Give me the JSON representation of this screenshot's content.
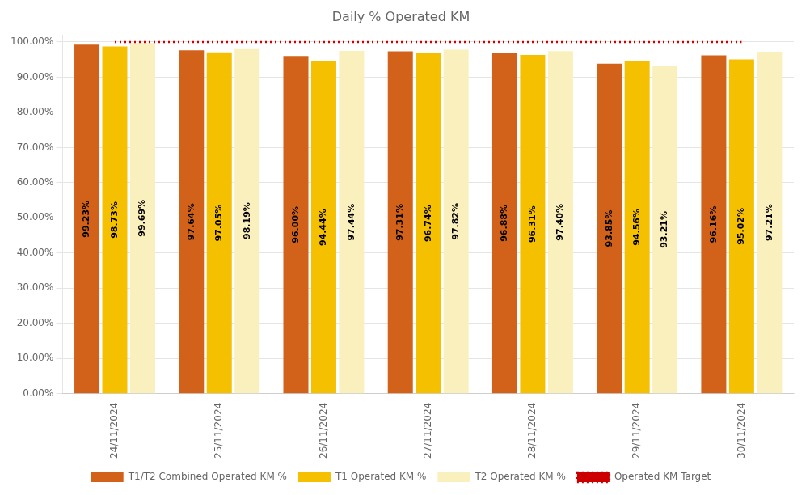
{
  "chart_data": {
    "type": "bar",
    "title": "Daily % Operated KM",
    "categories": [
      "24/11/2024",
      "25/11/2024",
      "26/11/2024",
      "27/11/2024",
      "28/11/2024",
      "29/11/2024",
      "30/11/2024"
    ],
    "series": [
      {
        "name": "T1/T2 Combined Operated KM %",
        "color": "#D2621A",
        "values": [
          99.23,
          97.64,
          96.0,
          97.31,
          96.88,
          93.85,
          96.16
        ],
        "value_labels": [
          "99.23%",
          "97.64%",
          "96.00%",
          "97.31%",
          "96.88%",
          "93.85%",
          "96.16%"
        ]
      },
      {
        "name": "T1 Operated KM %",
        "color": "#F5C000",
        "values": [
          98.73,
          97.05,
          94.44,
          96.74,
          96.31,
          94.56,
          95.02
        ],
        "value_labels": [
          "98.73%",
          "97.05%",
          "94.44%",
          "96.74%",
          "96.31%",
          "94.56%",
          "95.02%"
        ]
      },
      {
        "name": "T2 Operated KM %",
        "color": "#FAF0BE",
        "values": [
          99.69,
          98.19,
          97.44,
          97.82,
          97.4,
          93.21,
          97.21
        ],
        "value_labels": [
          "99.69%",
          "98.19%",
          "97.44%",
          "97.82%",
          "97.40%",
          "93.21%",
          "97.21%"
        ]
      },
      {
        "name": "Operated KM Target",
        "type": "line",
        "color": "#CC0000",
        "line_style": "dotted",
        "values": [
          100.0,
          100.0,
          100.0,
          100.0,
          100.0,
          100.0,
          100.0
        ]
      }
    ],
    "ylim": [
      0,
      102
    ],
    "yticks": [
      {
        "value": 0,
        "label": "0.00%"
      },
      {
        "value": 10,
        "label": "10.00%"
      },
      {
        "value": 20,
        "label": "20.00%"
      },
      {
        "value": 30,
        "label": "30.00%"
      },
      {
        "value": 40,
        "label": "40.00%"
      },
      {
        "value": 50,
        "label": "50.00%"
      },
      {
        "value": 60,
        "label": "60.00%"
      },
      {
        "value": 70,
        "label": "70.00%"
      },
      {
        "value": 80,
        "label": "80.00%"
      },
      {
        "value": 90,
        "label": "90.00%"
      },
      {
        "value": 100,
        "label": "100.00%"
      }
    ],
    "grid": true,
    "data_labels": true,
    "legend": "bottom"
  }
}
